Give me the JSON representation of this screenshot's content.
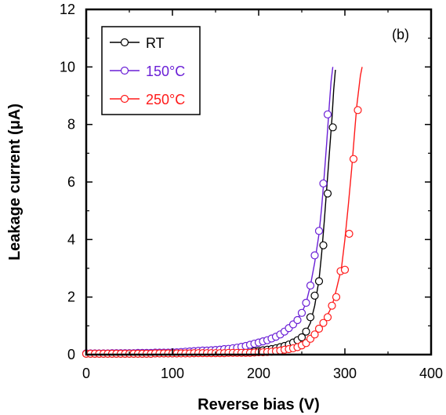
{
  "chart_data": {
    "type": "line",
    "title": "",
    "panel_label": "(b)",
    "xlabel": "Reverse bias (V)",
    "ylabel": "Leakage current (μA)",
    "xlim": [
      0,
      400
    ],
    "ylim": [
      0,
      12
    ],
    "xticks": [
      0,
      100,
      200,
      300,
      400
    ],
    "yticks": [
      0,
      2,
      4,
      6,
      8,
      10,
      12
    ],
    "grid": false,
    "legend_position": "top-left",
    "series": [
      {
        "name": "RT",
        "color": "#000000",
        "marker": "open-circle",
        "line_x": [
          0,
          50,
          100,
          150,
          180,
          200,
          210,
          220,
          230,
          240,
          250,
          255,
          260,
          265,
          270,
          273,
          276,
          279,
          282,
          285,
          287,
          289
        ],
        "line_y": [
          0.03,
          0.03,
          0.04,
          0.06,
          0.09,
          0.13,
          0.17,
          0.22,
          0.3,
          0.42,
          0.6,
          0.8,
          1.1,
          1.7,
          2.6,
          3.5,
          4.6,
          5.8,
          7.0,
          8.2,
          9.2,
          9.9
        ],
        "x": [
          0,
          5,
          10,
          15,
          20,
          25,
          30,
          35,
          40,
          45,
          50,
          55,
          60,
          65,
          70,
          75,
          80,
          85,
          90,
          95,
          100,
          105,
          110,
          115,
          120,
          125,
          130,
          135,
          140,
          145,
          150,
          155,
          160,
          165,
          170,
          175,
          180,
          185,
          190,
          195,
          200,
          205,
          210,
          215,
          220,
          225,
          230,
          235,
          240,
          245,
          250,
          255,
          260,
          265,
          270,
          275,
          280,
          286
        ],
        "y": [
          0.03,
          0.03,
          0.03,
          0.03,
          0.03,
          0.03,
          0.03,
          0.03,
          0.03,
          0.03,
          0.03,
          0.03,
          0.03,
          0.03,
          0.03,
          0.03,
          0.04,
          0.04,
          0.04,
          0.04,
          0.04,
          0.04,
          0.05,
          0.05,
          0.05,
          0.05,
          0.06,
          0.06,
          0.06,
          0.06,
          0.07,
          0.07,
          0.07,
          0.08,
          0.08,
          0.09,
          0.09,
          0.1,
          0.11,
          0.12,
          0.13,
          0.15,
          0.17,
          0.19,
          0.22,
          0.26,
          0.3,
          0.35,
          0.42,
          0.5,
          0.6,
          0.8,
          1.3,
          2.05,
          2.55,
          3.8,
          5.6,
          7.9
        ]
      },
      {
        "name": "150°C",
        "color": "#6a1fd6",
        "marker": "open-circle",
        "line_x": [
          0,
          50,
          100,
          150,
          180,
          200,
          210,
          220,
          230,
          240,
          250,
          255,
          260,
          265,
          270,
          273,
          276,
          279,
          282,
          284,
          286
        ],
        "line_y": [
          0.04,
          0.05,
          0.08,
          0.16,
          0.27,
          0.4,
          0.5,
          0.62,
          0.8,
          1.05,
          1.45,
          1.8,
          2.4,
          3.2,
          4.2,
          5.1,
          6.2,
          7.4,
          8.7,
          9.5,
          10.0
        ],
        "x": [
          0,
          5,
          10,
          15,
          20,
          25,
          30,
          35,
          40,
          45,
          50,
          55,
          60,
          65,
          70,
          75,
          80,
          85,
          90,
          95,
          100,
          105,
          110,
          115,
          120,
          125,
          130,
          135,
          140,
          145,
          150,
          155,
          160,
          165,
          170,
          175,
          180,
          185,
          190,
          195,
          200,
          205,
          210,
          215,
          220,
          225,
          230,
          235,
          240,
          245,
          250,
          255,
          260,
          265,
          270,
          275,
          280
        ],
        "y": [
          0.04,
          0.04,
          0.04,
          0.04,
          0.04,
          0.04,
          0.05,
          0.05,
          0.05,
          0.05,
          0.05,
          0.05,
          0.06,
          0.06,
          0.06,
          0.06,
          0.07,
          0.07,
          0.07,
          0.07,
          0.08,
          0.08,
          0.09,
          0.1,
          0.11,
          0.12,
          0.13,
          0.14,
          0.14,
          0.15,
          0.16,
          0.17,
          0.19,
          0.2,
          0.22,
          0.24,
          0.27,
          0.3,
          0.34,
          0.38,
          0.42,
          0.46,
          0.5,
          0.56,
          0.62,
          0.7,
          0.8,
          0.92,
          1.05,
          1.2,
          1.45,
          1.8,
          2.4,
          3.45,
          4.3,
          5.95,
          8.35
        ]
      },
      {
        "name": "250°C",
        "color": "#ff1a1a",
        "marker": "open-circle",
        "line_x": [
          0,
          50,
          100,
          150,
          180,
          200,
          220,
          240,
          250,
          260,
          270,
          278,
          282,
          285,
          288,
          292,
          296,
          300,
          304,
          308,
          312,
          314,
          316,
          318,
          320
        ],
        "line_y": [
          0.03,
          0.03,
          0.04,
          0.05,
          0.06,
          0.08,
          0.12,
          0.22,
          0.32,
          0.55,
          0.9,
          1.3,
          1.5,
          1.7,
          2.0,
          2.5,
          3.0,
          4.0,
          5.2,
          6.5,
          8.0,
          8.7,
          9.2,
          9.7,
          10.0
        ],
        "x": [
          0,
          5,
          10,
          15,
          20,
          25,
          30,
          35,
          40,
          45,
          50,
          55,
          60,
          65,
          70,
          75,
          80,
          85,
          90,
          95,
          100,
          105,
          110,
          115,
          120,
          125,
          130,
          135,
          140,
          145,
          150,
          155,
          160,
          165,
          170,
          175,
          180,
          185,
          190,
          195,
          200,
          205,
          210,
          215,
          220,
          225,
          230,
          235,
          240,
          245,
          250,
          255,
          260,
          265,
          270,
          275,
          280,
          285,
          290,
          295,
          300,
          305,
          310,
          315
        ],
        "y": [
          0.03,
          0.03,
          0.03,
          0.03,
          0.03,
          0.03,
          0.03,
          0.03,
          0.03,
          0.03,
          0.03,
          0.03,
          0.03,
          0.03,
          0.03,
          0.03,
          0.04,
          0.04,
          0.04,
          0.04,
          0.04,
          0.04,
          0.04,
          0.04,
          0.04,
          0.05,
          0.05,
          0.05,
          0.05,
          0.05,
          0.05,
          0.05,
          0.05,
          0.06,
          0.06,
          0.06,
          0.06,
          0.06,
          0.06,
          0.07,
          0.08,
          0.08,
          0.09,
          0.1,
          0.12,
          0.14,
          0.17,
          0.19,
          0.22,
          0.26,
          0.32,
          0.4,
          0.55,
          0.7,
          0.9,
          1.1,
          1.3,
          1.7,
          2.0,
          2.9,
          2.95,
          4.2,
          6.8,
          8.5
        ]
      }
    ]
  }
}
